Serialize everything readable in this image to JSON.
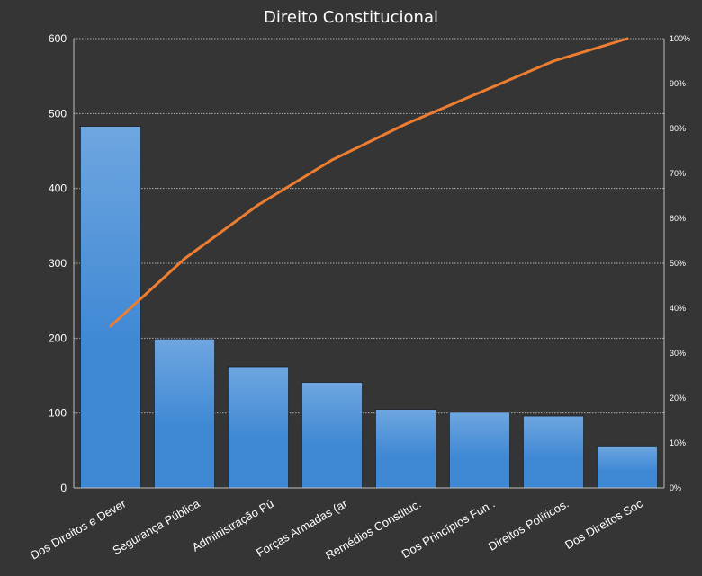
{
  "chart_data": {
    "type": "bar",
    "title": "Direito Constitucional",
    "categories": [
      "Dos Direitos e Dever",
      "Segurança Pública",
      "Administração Pú",
      "Forças Armadas (ar",
      "Remédios Constituc.",
      "Dos Princípios Fun .",
      "Direitos Políticos.",
      "Dos Direitos Soc"
    ],
    "series": [
      {
        "type": "bar",
        "axis": "left",
        "values": [
          483,
          199,
          162,
          141,
          105,
          101,
          96,
          56
        ]
      },
      {
        "type": "line",
        "axis": "right",
        "unit": "%",
        "values": [
          36,
          51,
          63,
          73,
          81,
          88,
          95,
          100
        ]
      }
    ],
    "y_left": {
      "min": 0,
      "max": 600,
      "step": 100,
      "ticks": [
        "0",
        "100",
        "200",
        "300",
        "400",
        "500",
        "600"
      ]
    },
    "y_right": {
      "min": 0,
      "max": 100,
      "step": 10,
      "ticks": [
        "0%",
        "10%",
        "20%",
        "30%",
        "40%",
        "50%",
        "60%",
        "70%",
        "80%",
        "90%",
        "100%"
      ]
    },
    "grid": true,
    "legend": "none",
    "colors": {
      "background": "#353535",
      "bar_top": "#6ea6e0",
      "bar_bottom": "#3f88d4",
      "line": "#ec7d31",
      "text": "#ffffff",
      "grid": "#d8d8d8"
    }
  }
}
